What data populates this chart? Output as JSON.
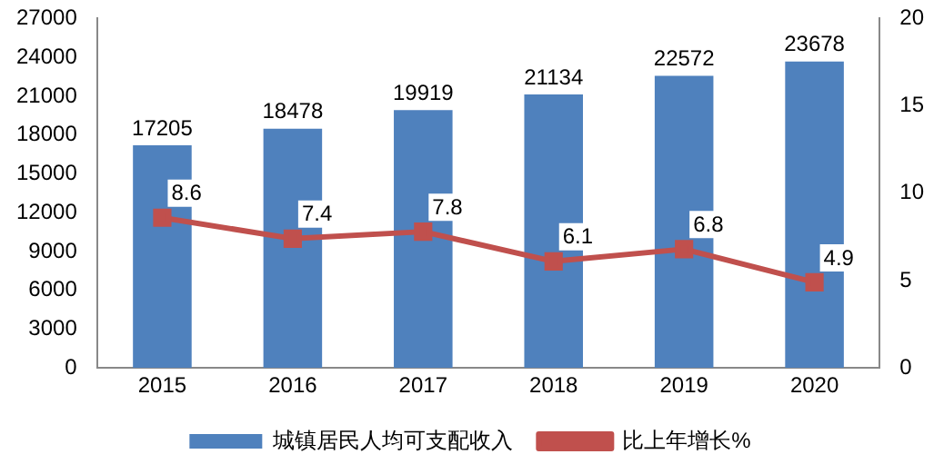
{
  "chart_data": {
    "type": "bar",
    "categories": [
      "2015",
      "2016",
      "2017",
      "2018",
      "2019",
      "2020"
    ],
    "series": [
      {
        "name": "城镇居民人均可支配收入",
        "color": "#4f81bd",
        "values": [
          17205,
          18478,
          19919,
          21134,
          22572,
          23678
        ]
      },
      {
        "name": "比上年增长%",
        "type": "line",
        "axis": "y2",
        "color": "#c0504d",
        "values": [
          8.6,
          7.4,
          7.8,
          6.1,
          6.8,
          4.9
        ]
      }
    ],
    "ylim": [
      0,
      27000
    ],
    "yticks": [
      0,
      3000,
      6000,
      9000,
      12000,
      15000,
      18000,
      21000,
      24000,
      27000
    ],
    "y2lim": [
      0,
      20
    ],
    "y2ticks": [
      0,
      5,
      10,
      15,
      20
    ],
    "grid": false,
    "legend": "bottom",
    "marker": "square",
    "line_style": "solid",
    "data_labels": true
  }
}
